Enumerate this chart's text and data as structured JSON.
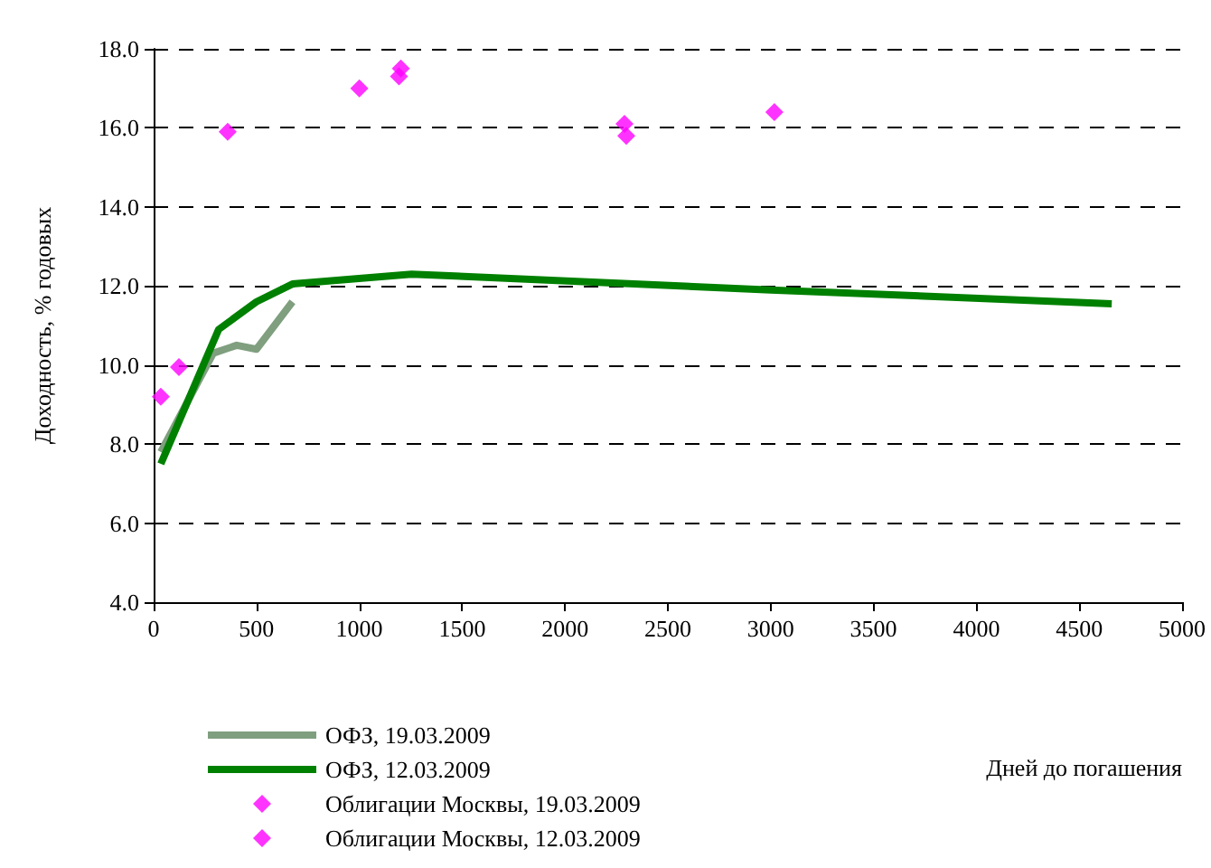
{
  "chart_data": {
    "type": "line",
    "xlabel": "Дней до погашения",
    "ylabel": "Доходность, % годовых",
    "xlim": [
      0,
      5000
    ],
    "xticks": [
      0,
      500,
      1000,
      1500,
      2000,
      2500,
      3000,
      3500,
      4000,
      4500,
      5000
    ],
    "ylim": [
      4,
      18
    ],
    "yticks": [
      {
        "value": 4,
        "label": "4.0"
      },
      {
        "value": 6,
        "label": "6.0"
      },
      {
        "value": 8,
        "label": "8.0"
      },
      {
        "value": 10,
        "label": "10.0"
      },
      {
        "value": 12,
        "label": "12.0"
      },
      {
        "value": 14,
        "label": "14.0"
      },
      {
        "value": 16,
        "label": "16.0"
      },
      {
        "value": 18,
        "label": "18.0"
      }
    ],
    "grid": "y",
    "legend": "bottom left",
    "series": [
      {
        "name": "ОФЗ, 19.03.2009",
        "color": "#7f9f7f",
        "marker": "none",
        "x": [
          35,
          290,
          404,
          500,
          675
        ],
        "values": [
          7.8,
          10.3,
          10.5,
          10.4,
          11.6
        ]
      },
      {
        "name": "ОФЗ, 12.03.2009",
        "color": "#008000",
        "marker": "none",
        "x": [
          35,
          316,
          500,
          675,
          1254,
          3000,
          4658
        ],
        "values": [
          7.5,
          10.9,
          11.6,
          12.05,
          12.3,
          11.9,
          11.55
        ]
      },
      {
        "name": "Облигации Москвы, 19.03.2009",
        "type": "scatter",
        "color": "#ff00ff",
        "marker": "diamond",
        "x": [
          35,
          123,
          360,
          1000,
          1193,
          2289,
          3018
        ],
        "values": [
          9.2,
          9.95,
          15.9,
          17.0,
          17.3,
          16.1,
          16.4
        ]
      },
      {
        "name": "Облигации Москвы, 12.03.2009",
        "type": "scatter",
        "color": "#ff00ff",
        "marker": "diamond",
        "x": [
          1202,
          2298
        ],
        "values": [
          17.5,
          15.8
        ]
      }
    ]
  }
}
